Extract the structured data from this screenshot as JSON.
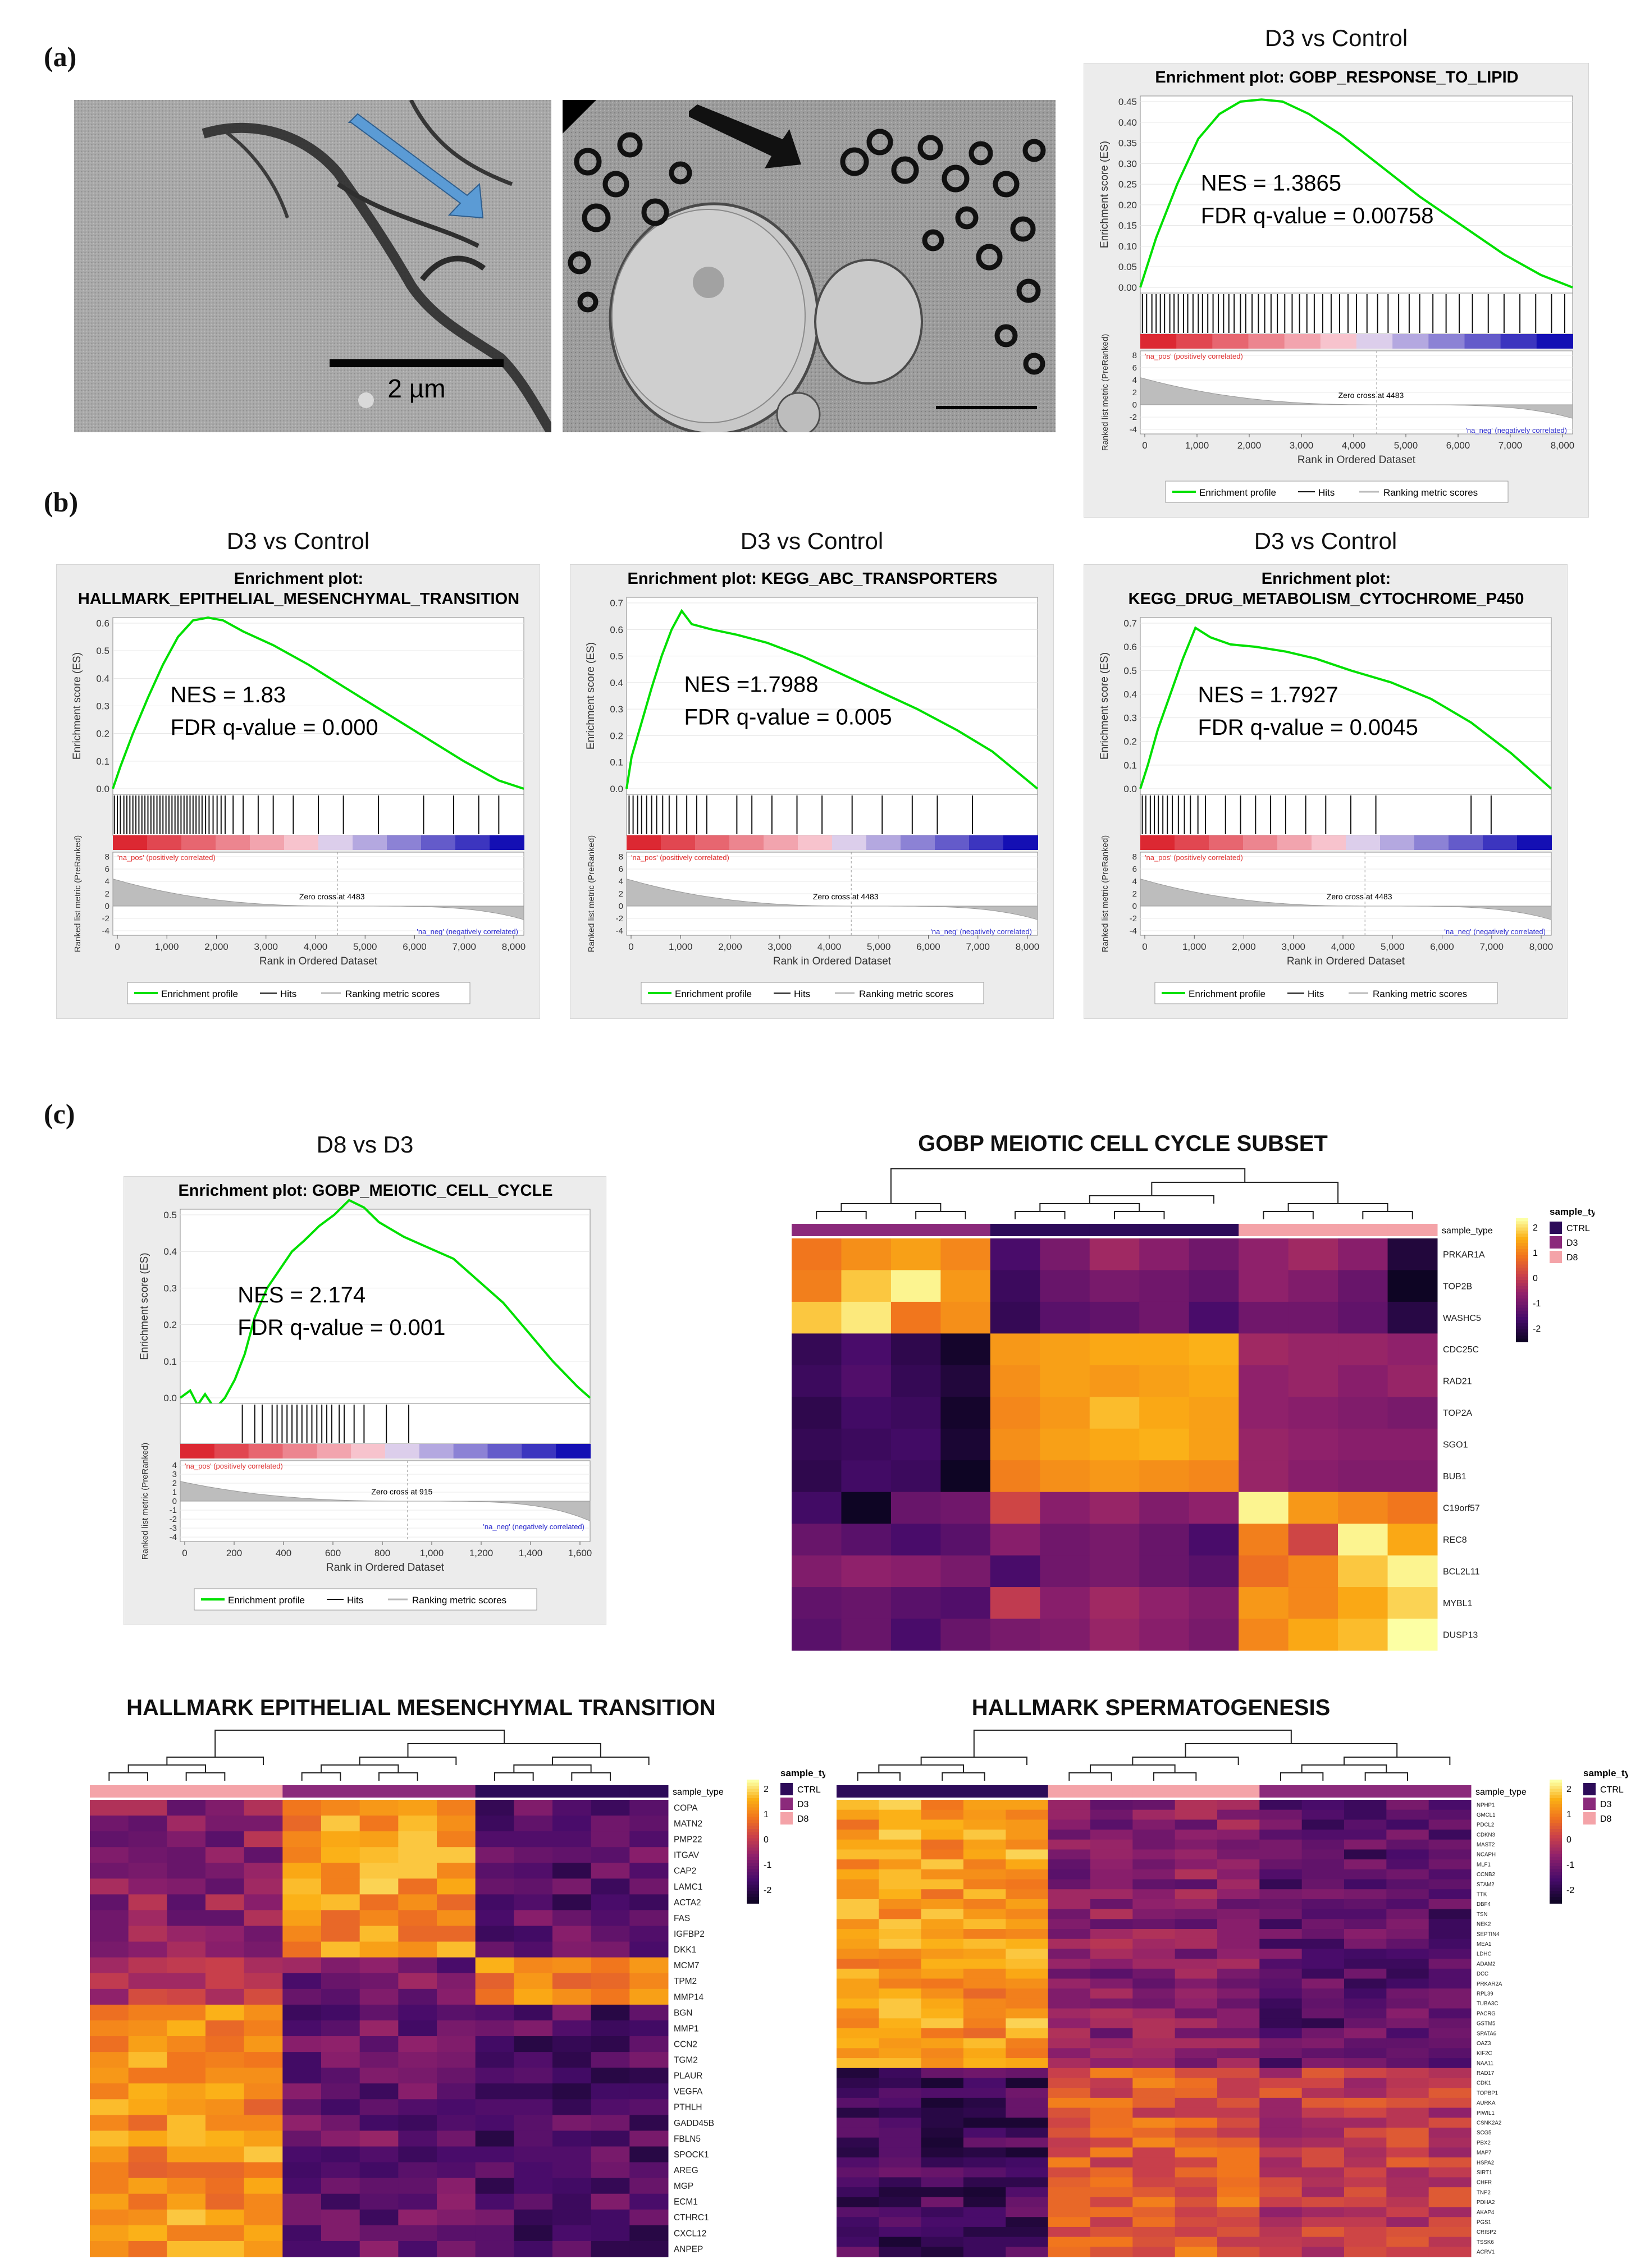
{
  "panel_labels": {
    "a": "(a)",
    "b": "(b)",
    "c": "(c)"
  },
  "micrographs": {
    "left_scale_label": "2 µm",
    "left_arrow_color": "#5b9bd5",
    "right_arrow_color": "#111111"
  },
  "gsea_plots": [
    {
      "id": "a1",
      "comparison": "D3 vs Control",
      "title_lines": [
        "Enrichment plot: GOBP_RESPONSE_TO_LIPID"
      ],
      "nes": "NES = 1.3865",
      "fdr": "FDR q-value = 0.00758",
      "x_ticks": [
        "0",
        "1,000",
        "2,000",
        "3,000",
        "4,000",
        "5,000",
        "6,000",
        "7,000",
        "8,000"
      ],
      "y_ticks": [
        "0.45",
        "0.40",
        "0.35",
        "0.30",
        "0.25",
        "0.20",
        "0.15",
        "0.10",
        "0.05",
        "0.00"
      ],
      "x_max": 8200,
      "y_min": 0.0,
      "y_max": 0.47,
      "es_x": [
        0,
        300,
        700,
        1100,
        1500,
        1900,
        2300,
        2700,
        3200,
        3800,
        4500,
        5300,
        6100,
        6900,
        7600,
        8200
      ],
      "es_y": [
        0.0,
        0.12,
        0.25,
        0.36,
        0.42,
        0.45,
        0.455,
        0.45,
        0.42,
        0.37,
        0.3,
        0.22,
        0.15,
        0.08,
        0.03,
        0.0
      ],
      "zero_cross": "Zero cross at 4483",
      "zero_cross_x": 4483,
      "hits": [
        40,
        120,
        220,
        300,
        380,
        460,
        560,
        640,
        720,
        820,
        900,
        1000,
        1100,
        1180,
        1280,
        1380,
        1480,
        1580,
        1680,
        1780,
        1900,
        2000,
        2120,
        2240,
        2360,
        2480,
        2600,
        2740,
        2880,
        3020,
        3160,
        3300,
        3460,
        3620,
        3780,
        3940,
        4100,
        4300,
        4500,
        4700,
        4900,
        5100,
        5300,
        5550,
        5800,
        6050,
        6300,
        6600,
        6900,
        7200,
        7500,
        7800,
        8050
      ],
      "metric_ticks": [
        "8",
        "6",
        "4",
        "2",
        "0",
        "-2",
        "-4"
      ]
    },
    {
      "id": "b1",
      "comparison": "D3 vs Control",
      "title_lines": [
        "Enrichment plot:",
        "HALLMARK_EPITHELIAL_MESENCHYMAL_TRANSITION"
      ],
      "nes": "NES = 1.83",
      "fdr": "FDR q-value = 0.000",
      "x_ticks": [
        "0",
        "1,000",
        "2,000",
        "3,000",
        "4,000",
        "5,000",
        "6,000",
        "7,000",
        "8,000"
      ],
      "y_ticks": [
        "0.6",
        "0.5",
        "0.4",
        "0.3",
        "0.2",
        "0.1",
        "0.0"
      ],
      "x_max": 8200,
      "y_min": 0.0,
      "y_max": 0.65,
      "es_x": [
        0,
        150,
        400,
        700,
        1000,
        1300,
        1600,
        1900,
        2200,
        2600,
        3200,
        3900,
        4600,
        5400,
        6200,
        7000,
        7700,
        8200
      ],
      "es_y": [
        0.0,
        0.08,
        0.2,
        0.33,
        0.45,
        0.55,
        0.61,
        0.62,
        0.61,
        0.57,
        0.52,
        0.45,
        0.37,
        0.28,
        0.19,
        0.1,
        0.03,
        0.0
      ],
      "zero_cross": "Zero cross at 4483",
      "zero_cross_x": 4483,
      "hits": [
        30,
        90,
        150,
        220,
        280,
        340,
        400,
        460,
        520,
        580,
        640,
        700,
        760,
        820,
        880,
        940,
        1000,
        1060,
        1120,
        1180,
        1240,
        1300,
        1360,
        1420,
        1480,
        1540,
        1600,
        1660,
        1720,
        1780,
        1850,
        1920,
        2000,
        2080,
        2160,
        2240,
        2400,
        2600,
        2900,
        3200,
        3600,
        4100,
        4600,
        5300,
        6200,
        6800,
        7300,
        7700
      ],
      "metric_ticks": [
        "8",
        "6",
        "4",
        "2",
        "0",
        "-2",
        "-4"
      ]
    },
    {
      "id": "b2",
      "comparison": "D3 vs Control",
      "title_lines": [
        "Enrichment plot: KEGG_ABC_TRANSPORTERS"
      ],
      "nes": "NES =1.7988",
      "fdr": "FDR q-value = 0.005",
      "x_ticks": [
        "0",
        "1,000",
        "2,000",
        "3,000",
        "4,000",
        "5,000",
        "6,000",
        "7,000",
        "8,000"
      ],
      "y_ticks": [
        "0.7",
        "0.6",
        "0.5",
        "0.4",
        "0.3",
        "0.2",
        "0.1",
        "0.0"
      ],
      "x_max": 8200,
      "y_min": 0.0,
      "y_max": 0.72,
      "es_x": [
        0,
        100,
        300,
        500,
        700,
        900,
        1100,
        1300,
        1700,
        2200,
        2800,
        3500,
        4200,
        5000,
        5800,
        6600,
        7300,
        8200
      ],
      "es_y": [
        0.0,
        0.12,
        0.25,
        0.38,
        0.5,
        0.6,
        0.67,
        0.62,
        0.6,
        0.58,
        0.55,
        0.5,
        0.44,
        0.37,
        0.3,
        0.22,
        0.14,
        0.0
      ],
      "zero_cross": "Zero cross at 4483",
      "zero_cross_x": 4483,
      "hits": [
        50,
        130,
        220,
        300,
        400,
        500,
        600,
        720,
        850,
        1000,
        1200,
        1400,
        1600,
        2200,
        2500,
        2900,
        3400,
        3900,
        4500,
        5100,
        5700,
        6200,
        6900
      ],
      "metric_ticks": [
        "8",
        "6",
        "4",
        "2",
        "0",
        "-2",
        "-4"
      ]
    },
    {
      "id": "b3",
      "comparison": "D3 vs Control",
      "title_lines": [
        "Enrichment plot:",
        "KEGG_DRUG_METABOLISM_CYTOCHROME_P450"
      ],
      "nes": "NES = 1.7927",
      "fdr": "FDR q-value = 0.0045",
      "x_ticks": [
        "0",
        "1,000",
        "2,000",
        "3,000",
        "4,000",
        "5,000",
        "6,000",
        "7,000",
        "8,000"
      ],
      "y_ticks": [
        "0.7",
        "0.6",
        "0.5",
        "0.4",
        "0.3",
        "0.2",
        "0.1",
        "0.0"
      ],
      "x_max": 8200,
      "y_min": 0.0,
      "y_max": 0.72,
      "es_x": [
        0,
        150,
        350,
        600,
        850,
        1100,
        1400,
        1800,
        2300,
        2900,
        3500,
        4200,
        5000,
        5800,
        6600,
        7400,
        8200
      ],
      "es_y": [
        0.0,
        0.1,
        0.25,
        0.4,
        0.55,
        0.68,
        0.64,
        0.61,
        0.6,
        0.58,
        0.55,
        0.5,
        0.45,
        0.38,
        0.28,
        0.15,
        0.0
      ],
      "zero_cross": "Zero cross at 4483",
      "zero_cross_x": 4483,
      "hits": [
        40,
        110,
        200,
        280,
        360,
        450,
        540,
        640,
        760,
        880,
        1000,
        1150,
        1300,
        1700,
        2000,
        2300,
        2600,
        2900,
        3300,
        3700,
        4200,
        4700,
        6600,
        7000
      ],
      "metric_ticks": [
        "8",
        "6",
        "4",
        "2",
        "0",
        "-2",
        "-4"
      ]
    },
    {
      "id": "c1",
      "comparison": "D8 vs D3",
      "title_lines": [
        "Enrichment plot: GOBP_MEIOTIC_CELL_CYCLE"
      ],
      "nes": "NES = 2.174",
      "fdr": "FDR q-value = 0.001",
      "x_ticks": [
        "0",
        "200",
        "400",
        "600",
        "800",
        "1,000",
        "1,200",
        "1,400",
        "1,600"
      ],
      "y_ticks": [
        "0.5",
        "0.4",
        "0.3",
        "0.2",
        "0.1",
        "0.0"
      ],
      "x_max": 1650,
      "y_min": -0.04,
      "y_max": 0.56,
      "es_x": [
        0,
        40,
        70,
        100,
        140,
        180,
        220,
        260,
        300,
        350,
        400,
        450,
        500,
        560,
        620,
        680,
        740,
        800,
        900,
        1000,
        1100,
        1200,
        1300,
        1400,
        1500,
        1600,
        1650
      ],
      "es_y": [
        0.0,
        0.02,
        -0.02,
        0.01,
        -0.03,
        0.0,
        0.05,
        0.12,
        0.22,
        0.3,
        0.35,
        0.4,
        0.43,
        0.47,
        0.5,
        0.54,
        0.52,
        0.48,
        0.44,
        0.41,
        0.38,
        0.32,
        0.26,
        0.18,
        0.1,
        0.03,
        0.0
      ],
      "zero_cross": "Zero cross at 915",
      "zero_cross_x": 915,
      "hits": [
        250,
        300,
        330,
        370,
        390,
        410,
        430,
        450,
        470,
        490,
        510,
        530,
        550,
        570,
        590,
        610,
        640,
        660,
        700,
        740,
        830,
        920
      ],
      "metric_ticks": [
        "4",
        "3",
        "2",
        "1",
        "0",
        "-1",
        "-2",
        "-3",
        "-4"
      ]
    }
  ],
  "gsea_common": {
    "y_label_es": "Enrichment score (ES)",
    "y_label_metric": "Ranked list metric (PreRanked)",
    "x_label": "Rank in Ordered Dataset",
    "pos_label": "'na_pos' (positively correlated)",
    "neg_label": "'na_neg' (negatively correlated)",
    "legend": [
      "Enrichment profile",
      "Hits",
      "Ranking metric scores"
    ],
    "colors": {
      "es_line": "#00e000",
      "pos": "#e03030",
      "neg": "#3030d0",
      "metric": "#bdbdbd"
    }
  },
  "heatmaps": [
    {
      "id": "meiotic",
      "title": "GOBP MEIOTIC CELL CYCLE  SUBSET",
      "annotation_label": "sample_type",
      "legend_title": "sample_type",
      "legend_items": [
        "CTRL",
        "D3",
        "D8"
      ],
      "scale_ticks": [
        "2",
        "1",
        "0",
        "-1",
        "-2"
      ],
      "column_groups": [
        "D3",
        "D3",
        "D3",
        "D3",
        "CTRL",
        "CTRL",
        "CTRL",
        "CTRL",
        "CTRL",
        "D8",
        "D8",
        "D8",
        "D8"
      ],
      "rows": [
        "PRKAR1A",
        "TOP2B",
        "WASHC5",
        "CDC25C",
        "RAD21",
        "TOP2A",
        "SGO1",
        "BUB1",
        "C19orf57",
        "REC8",
        "BCL2L11",
        "MYBL1",
        "DUSP13"
      ],
      "values": [
        [
          1.0,
          1.3,
          1.5,
          1.2,
          -1.4,
          -0.8,
          -0.3,
          -0.6,
          -0.9,
          -0.5,
          -0.3,
          -0.6,
          -2.0
        ],
        [
          1.1,
          1.9,
          2.3,
          1.4,
          -1.6,
          -1.0,
          -0.8,
          -0.9,
          -1.1,
          -0.5,
          -0.7,
          -1.0,
          -2.3
        ],
        [
          1.9,
          2.2,
          1.0,
          1.3,
          -1.7,
          -1.2,
          -1.1,
          -0.9,
          -1.4,
          -0.9,
          -0.9,
          -1.1,
          -1.9
        ],
        [
          -1.7,
          -1.4,
          -1.8,
          -2.2,
          1.4,
          1.5,
          1.6,
          1.6,
          1.7,
          -0.3,
          -0.4,
          -0.4,
          -0.5
        ],
        [
          -1.6,
          -1.3,
          -1.7,
          -2.0,
          1.3,
          1.5,
          1.4,
          1.5,
          1.6,
          -0.5,
          -0.4,
          -0.6,
          -0.4
        ],
        [
          -1.8,
          -1.5,
          -1.6,
          -2.2,
          1.2,
          1.4,
          1.8,
          1.6,
          1.5,
          -0.5,
          -0.6,
          -0.7,
          -0.8
        ],
        [
          -1.7,
          -1.6,
          -1.5,
          -2.1,
          1.3,
          1.5,
          1.6,
          1.7,
          1.5,
          -0.4,
          -0.5,
          -0.6,
          -0.6
        ],
        [
          -1.8,
          -1.5,
          -1.6,
          -2.3,
          1.1,
          1.3,
          1.4,
          1.3,
          1.2,
          -0.4,
          -0.6,
          -0.7,
          -0.7
        ],
        [
          -1.5,
          -2.3,
          -1.0,
          -0.9,
          0.3,
          -0.6,
          -0.4,
          -0.7,
          -0.5,
          2.3,
          1.4,
          1.2,
          1.0
        ],
        [
          -1.0,
          -1.2,
          -1.4,
          -1.2,
          -0.6,
          -0.9,
          -0.8,
          -1.0,
          -1.4,
          1.1,
          0.3,
          2.3,
          1.6
        ],
        [
          -0.7,
          -0.5,
          -0.6,
          -0.8,
          -1.4,
          -0.9,
          -0.8,
          -1.0,
          -1.2,
          0.9,
          1.2,
          1.9,
          2.3
        ],
        [
          -1.1,
          -1.0,
          -1.2,
          -1.3,
          0.1,
          -0.6,
          -0.3,
          -0.5,
          -0.7,
          1.4,
          1.2,
          1.6,
          2.0
        ],
        [
          -1.2,
          -1.0,
          -1.4,
          -1.0,
          -0.8,
          -0.7,
          -0.4,
          -0.6,
          -0.8,
          1.2,
          1.6,
          1.8,
          2.4
        ]
      ]
    },
    {
      "id": "emt",
      "title": "HALLMARK  EPITHELIAL MESENCHYMAL TRANSITION",
      "annotation_label": "sample_type",
      "legend_title": "sample_type",
      "legend_items": [
        "CTRL",
        "D3",
        "D8"
      ],
      "scale_ticks": [
        "2",
        "1",
        "0",
        "-1",
        "-2"
      ],
      "column_groups": [
        "D8",
        "D8",
        "D8",
        "D8",
        "D8",
        "D3",
        "D3",
        "D3",
        "D3",
        "D3",
        "CTRL",
        "CTRL",
        "CTRL",
        "CTRL",
        "CTRL"
      ],
      "rows": [
        "COPA",
        "MATN2",
        "PMP22",
        "ITGAV",
        "CAP2",
        "LAMC1",
        "ACTA2",
        "FAS",
        "IGFBP2",
        "DKK1",
        "MCM7",
        "TPM2",
        "MMP14",
        "BGN",
        "MMP1",
        "CCN2",
        "TGM2",
        "PLAUR",
        "VEGFA",
        "PTHLH",
        "GADD45B",
        "FBLN5",
        "SPOCK1",
        "AREG",
        "MGP",
        "ECM1",
        "CTHRC1",
        "CXCL12",
        "ANPEP"
      ],
      "values": "auto-emt"
    },
    {
      "id": "sperm",
      "title": "HALLMARK SPERMATOGENESIS",
      "annotation_label": "sample_type",
      "legend_title": "sample_type",
      "legend_items": [
        "CTRL",
        "D3",
        "D8"
      ],
      "scale_ticks": [
        "2",
        "1",
        "0",
        "-1",
        "-2"
      ],
      "column_groups": [
        "CTRL",
        "CTRL",
        "CTRL",
        "CTRL",
        "CTRL",
        "D8",
        "D8",
        "D8",
        "D8",
        "D8",
        "D3",
        "D3",
        "D3",
        "D3",
        "D3"
      ],
      "rows": [
        "NPHP1",
        "GMCL1",
        "PDCL2",
        "CDKN3",
        "MAST2",
        "NCAPH",
        "MLF1",
        "CCNB2",
        "STAM2",
        "TTK",
        "DBF4",
        "TSN",
        "NEK2",
        "SEPTIN4",
        "MEA1",
        "LDHC",
        "ADAM2",
        "DCC",
        "PRKAR2A",
        "RPL39",
        "TUBA3C",
        "PACRG",
        "GSTM5",
        "SPATA6",
        "OAZ3",
        "KIF2C",
        "NAA11",
        "RAD17",
        "CDK1",
        "TOPBP1",
        "AURKA",
        "PIWIL1",
        "CSNK2A2",
        "SCG5",
        "PBX2",
        "MAP7",
        "HSPA2",
        "SIRT1",
        "CHFR",
        "TNP2",
        "PDHA2",
        "AKAP4",
        "PGS1",
        "CRISP2",
        "TSSK6",
        "ACRV1"
      ],
      "values": "auto-sperm"
    }
  ],
  "heatmap_colors": {
    "CTRL": "#2d0b59",
    "D3": "#8b2a7b",
    "D8": "#f4a3a8"
  }
}
